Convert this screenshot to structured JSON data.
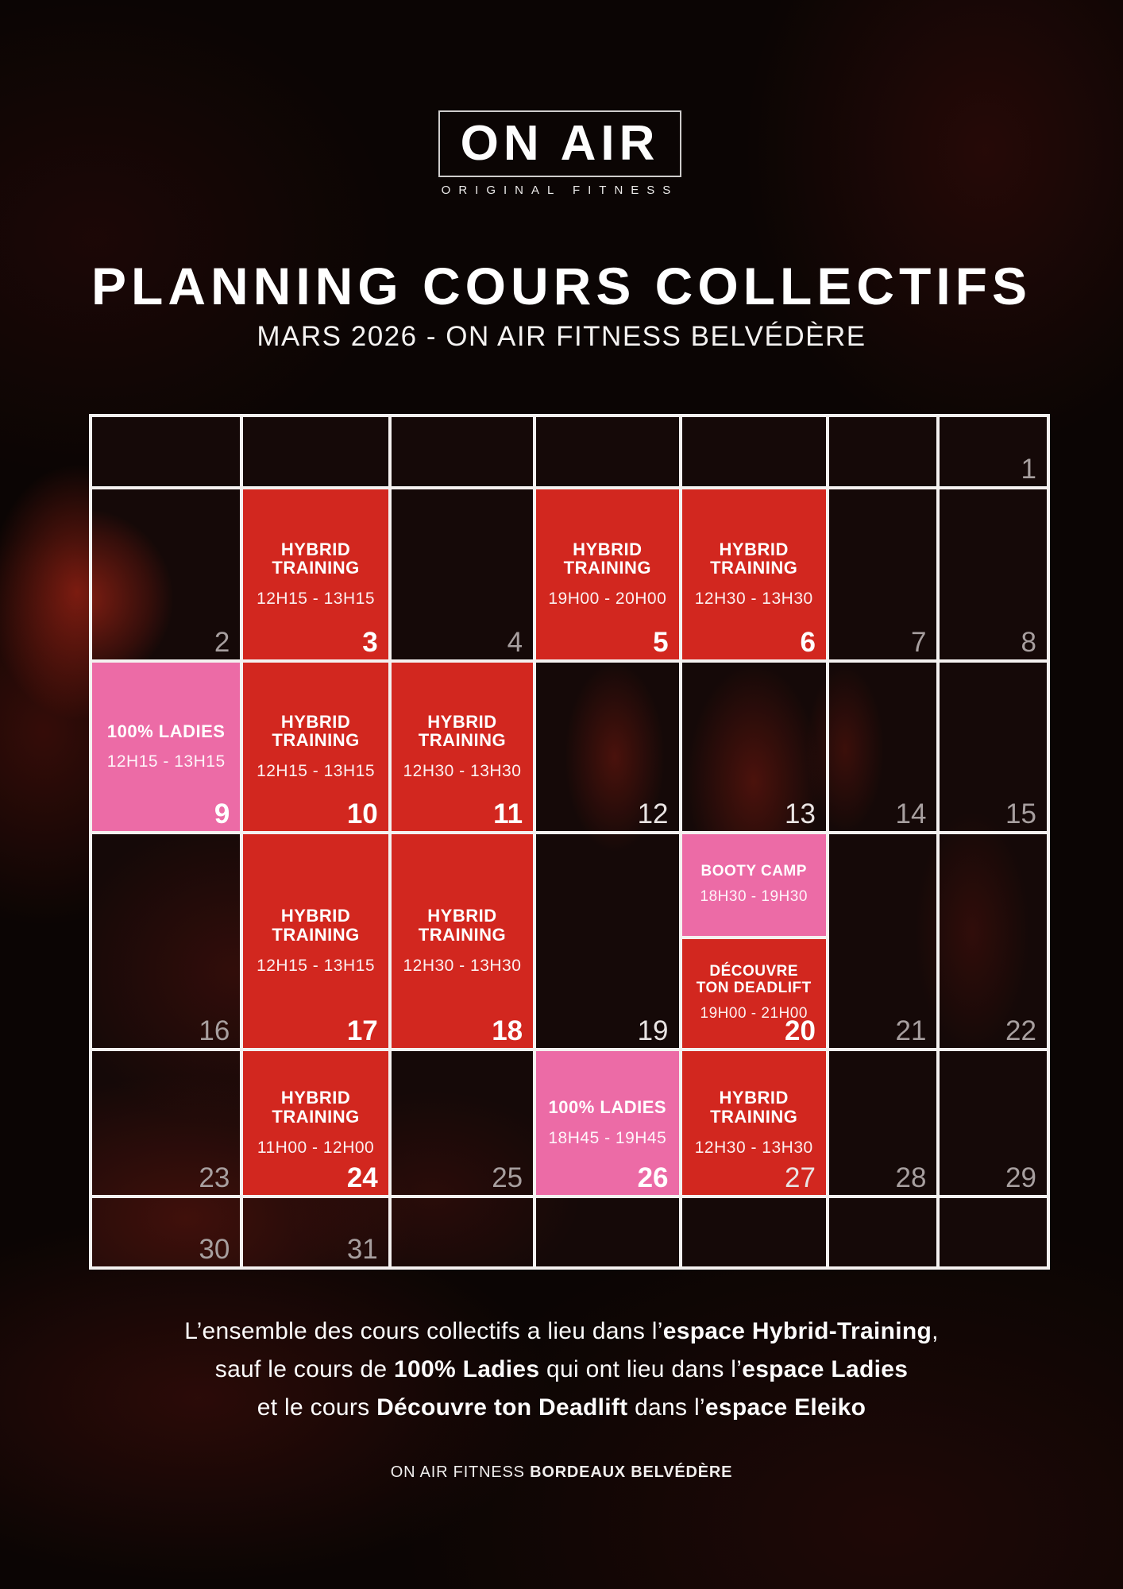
{
  "logo": {
    "name": "ON AIR",
    "tagline": "ORIGINAL FITNESS"
  },
  "header": {
    "title": "PLANNING COURS COLLECTIFS",
    "subtitle": "MARS 2026 - ON AIR FITNESS BELVÉDÈRE"
  },
  "colors": {
    "event_red": "#d2271f",
    "event_pink": "#ec6ba6",
    "grid_border": "#f4f1f0",
    "day_number_grey": "#a79f9f",
    "day_number_white": "#e9e4e3"
  },
  "calendar": {
    "month": "MARS 2026",
    "weeks": [
      [
        {
          "num": ""
        },
        {
          "num": ""
        },
        {
          "num": ""
        },
        {
          "num": ""
        },
        {
          "num": ""
        },
        {
          "num": ""
        },
        {
          "num": "1",
          "style": "grey"
        }
      ],
      [
        {
          "num": "2",
          "style": "grey"
        },
        {
          "num": "3",
          "style": "bold",
          "events": [
            {
              "color": "red",
              "title": "HYBRID\nTRAINING",
              "time": "12H15 - 13H15"
            }
          ]
        },
        {
          "num": "4",
          "style": "grey"
        },
        {
          "num": "5",
          "style": "bold",
          "events": [
            {
              "color": "red",
              "title": "HYBRID\nTRAINING",
              "time": "19H00 - 20H00"
            }
          ]
        },
        {
          "num": "6",
          "style": "bold",
          "events": [
            {
              "color": "red",
              "title": "HYBRID\nTRAINING",
              "time": "12H30 - 13H30"
            }
          ]
        },
        {
          "num": "7",
          "style": "grey"
        },
        {
          "num": "8",
          "style": "grey"
        }
      ],
      [
        {
          "num": "9",
          "style": "bold",
          "events": [
            {
              "color": "pink",
              "title": "100% LADIES",
              "time": "12H15 - 13H15"
            }
          ]
        },
        {
          "num": "10",
          "style": "bold",
          "events": [
            {
              "color": "red",
              "title": "HYBRID\nTRAINING",
              "time": "12H15 - 13H15"
            }
          ]
        },
        {
          "num": "11",
          "style": "bold",
          "events": [
            {
              "color": "red",
              "title": "HYBRID\nTRAINING",
              "time": "12H30 - 13H30"
            }
          ]
        },
        {
          "num": "12",
          "style": "white"
        },
        {
          "num": "13",
          "style": "white"
        },
        {
          "num": "14",
          "style": "grey"
        },
        {
          "num": "15",
          "style": "grey"
        }
      ],
      [
        {
          "num": "16",
          "style": "grey"
        },
        {
          "num": "17",
          "style": "bold",
          "events": [
            {
              "color": "red",
              "title": "HYBRID\nTRAINING",
              "time": "12H15 - 13H15"
            }
          ]
        },
        {
          "num": "18",
          "style": "bold",
          "events": [
            {
              "color": "red",
              "title": "HYBRID\nTRAINING",
              "time": "12H30 - 13H30"
            }
          ]
        },
        {
          "num": "19",
          "style": "white"
        },
        {
          "num": "20",
          "style": "bold",
          "events": [
            {
              "color": "pink",
              "title": "BOOTY CAMP",
              "time": "18H30 - 19H30",
              "flex": 48,
              "compact": true
            },
            {
              "color": "red",
              "title": "DÉCOUVRE\nTON DEADLIFT",
              "time": "19H00 - 21H00",
              "flex": 52,
              "compact": true
            }
          ]
        },
        {
          "num": "21",
          "style": "grey"
        },
        {
          "num": "22",
          "style": "grey"
        }
      ],
      [
        {
          "num": "23",
          "style": "grey"
        },
        {
          "num": "24",
          "style": "bold",
          "events": [
            {
              "color": "red",
              "title": "HYBRID\nTRAINING",
              "time": "11H00 - 12H00"
            }
          ]
        },
        {
          "num": "25",
          "style": "grey"
        },
        {
          "num": "26",
          "style": "bold",
          "events": [
            {
              "color": "pink",
              "title": "100% LADIES",
              "time": "18H45 - 19H45"
            }
          ]
        },
        {
          "num": "27",
          "style": "white",
          "events": [
            {
              "color": "red",
              "title": "HYBRID\nTRAINING",
              "time": "12H30 - 13H30"
            }
          ]
        },
        {
          "num": "28",
          "style": "grey"
        },
        {
          "num": "29",
          "style": "grey"
        }
      ],
      [
        {
          "num": "30",
          "style": "grey"
        },
        {
          "num": "31",
          "style": "grey"
        },
        {
          "num": ""
        },
        {
          "num": ""
        },
        {
          "num": ""
        },
        {
          "num": ""
        },
        {
          "num": ""
        }
      ]
    ]
  },
  "footer": {
    "lines": [
      [
        {
          "t": "L’ensemble des cours collectifs a lieu dans l’"
        },
        {
          "t": "espace Hybrid-Training",
          "b": true
        },
        {
          "t": ","
        }
      ],
      [
        {
          "t": "sauf le cours de "
        },
        {
          "t": "100% Ladies",
          "b": true
        },
        {
          "t": " qui ont lieu dans l’"
        },
        {
          "t": "espace Ladies",
          "b": true
        }
      ],
      [
        {
          "t": "et le cours "
        },
        {
          "t": "Découvre ton Deadlift",
          "b": true
        },
        {
          "t": " dans l’"
        },
        {
          "t": "espace Eleiko",
          "b": true
        }
      ]
    ],
    "club_line": [
      {
        "t": "ON AIR FITNESS "
      },
      {
        "t": "BORDEAUX BELVÉDÈRE",
        "b": true
      }
    ]
  }
}
